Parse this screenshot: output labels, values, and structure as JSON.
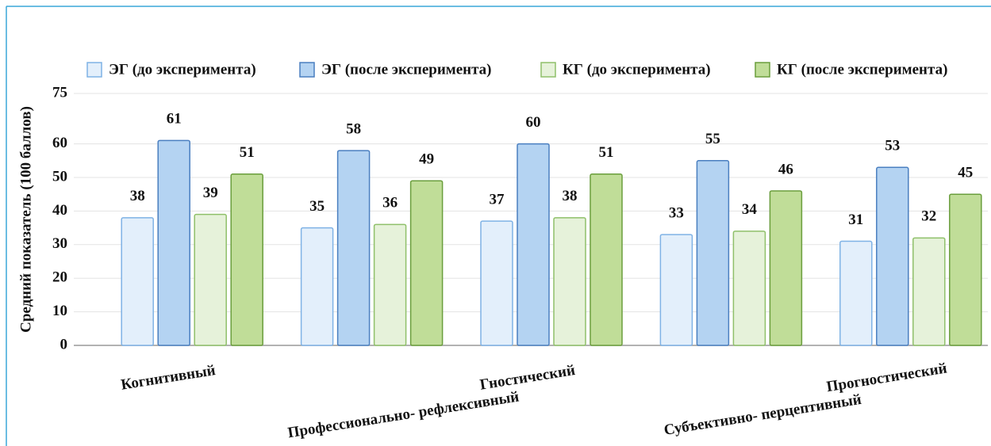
{
  "chart_data": {
    "type": "bar",
    "ylabel": "Средний показатель (100 баллов)",
    "categories": [
      "Когнитивный",
      "Профессионально- рефлексивный",
      "Гностический",
      "Субъективно- перцептивный",
      "Прогностический"
    ],
    "series": [
      {
        "name": "ЭГ (до эксперимента)",
        "color": "#e3effb",
        "stroke": "#7fb2e5",
        "values": [
          38,
          35,
          37,
          33,
          31
        ]
      },
      {
        "name": "ЭГ (после эксперимента)",
        "color": "#b4d3f2",
        "stroke": "#4a7fc0",
        "values": [
          61,
          58,
          60,
          55,
          53
        ]
      },
      {
        "name": "КГ (до эксперимента)",
        "color": "#e6f2da",
        "stroke": "#8fc06a",
        "values": [
          39,
          36,
          38,
          34,
          32
        ]
      },
      {
        "name": "КГ (после эксперимента)",
        "color": "#c0dd98",
        "stroke": "#6a9e3c",
        "values": [
          51,
          49,
          51,
          46,
          45
        ]
      }
    ],
    "ylim": [
      0,
      75
    ],
    "yticks": [
      0,
      10,
      20,
      30,
      40,
      50,
      60,
      75
    ],
    "grid": true,
    "legend": "top"
  }
}
